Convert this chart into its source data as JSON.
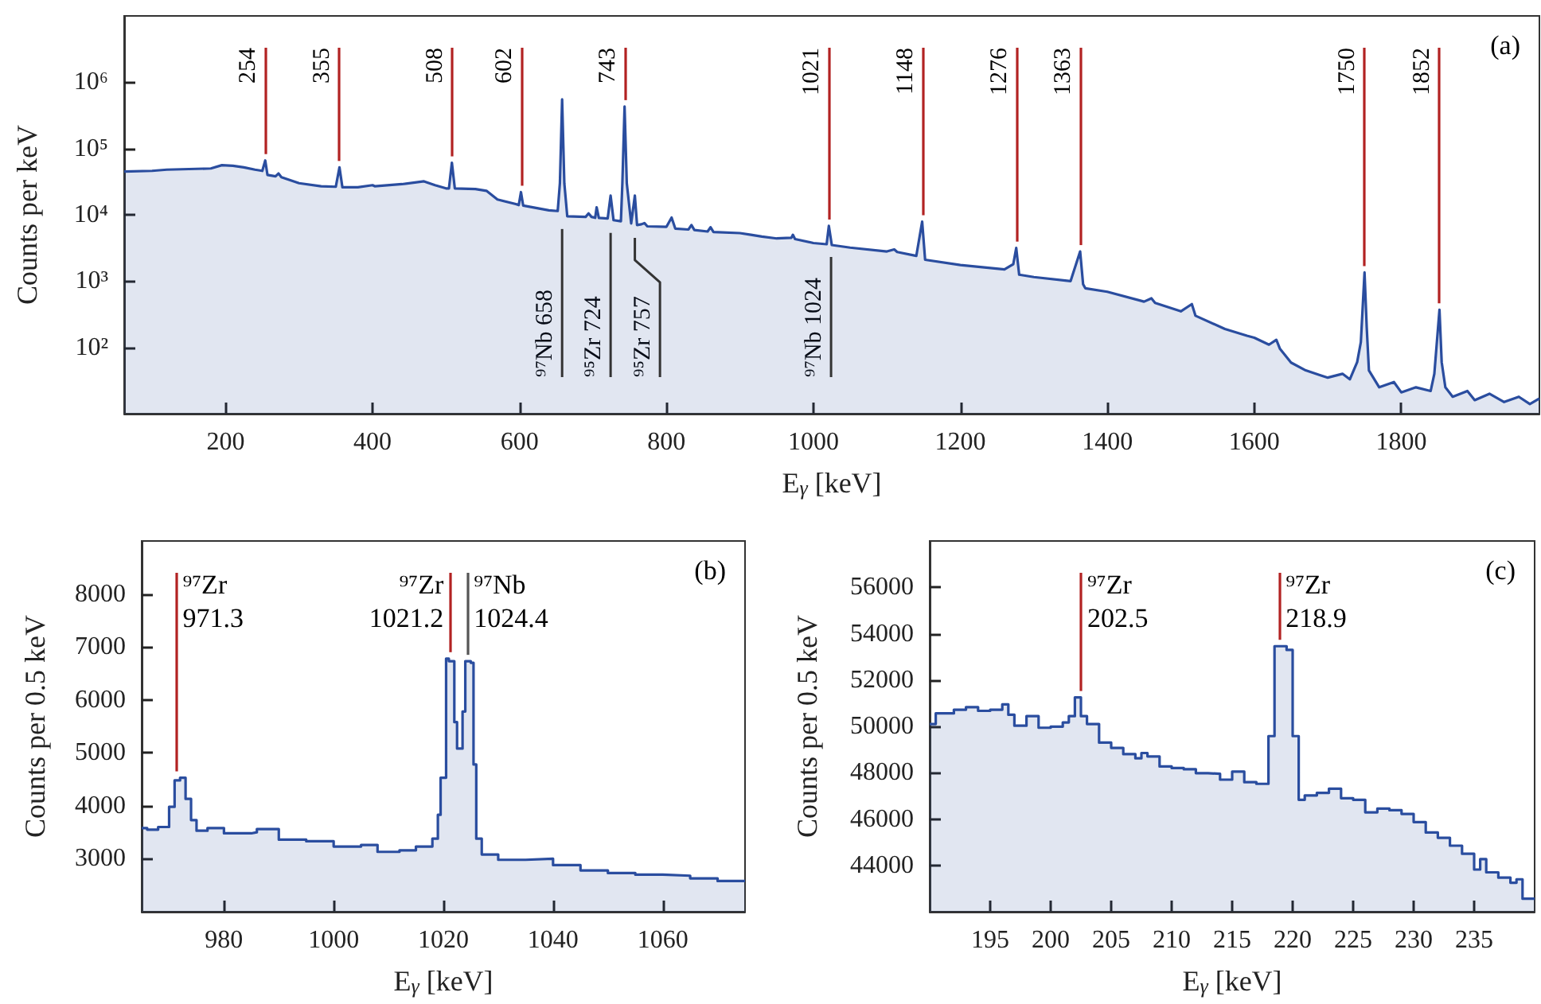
{
  "chart_data": [
    {
      "type": "area",
      "xlabel": "E$_{γ}$ [keV]",
      "ylabel": "Counts per keV",
      "log": "y",
      "xlim": [
        62,
        1988
      ],
      "xticks": [
        200,
        400,
        600,
        800,
        1000,
        1200,
        1400,
        1600,
        1800
      ],
      "ylim": [
        10,
        10000000
      ],
      "yticks": [
        {
          "value": 100,
          "label": "10²"
        },
        {
          "value": 1000,
          "label": "10³"
        },
        {
          "value": 10000,
          "label": "10⁴"
        },
        {
          "value": 100000,
          "label": "10⁵"
        },
        {
          "value": 1000000,
          "label": "10⁶"
        }
      ],
      "x": [
        62,
        100,
        120,
        150,
        180,
        195,
        210,
        225,
        240,
        250,
        254,
        257,
        268,
        272,
        276,
        300,
        330,
        350,
        355,
        359,
        380,
        400,
        403,
        440,
        470,
        485,
        500,
        504,
        508,
        512,
        540,
        555,
        570,
        595,
        599,
        602,
        605,
        640,
        652,
        655,
        658,
        661,
        665,
        690,
        694,
        698,
        703,
        705,
        708,
        720,
        724,
        728,
        738,
        740,
        743,
        746,
        752,
        757,
        760,
        766,
        770,
        774,
        800,
        807,
        812,
        830,
        834,
        838,
        856,
        860,
        864,
        900,
        915,
        930,
        950,
        970,
        972,
        975,
        1000,
        1018,
        1021,
        1025,
        1050,
        1100,
        1110,
        1114,
        1140,
        1148,
        1152,
        1200,
        1260,
        1272,
        1276,
        1280,
        1300,
        1350,
        1363,
        1367,
        1370,
        1400,
        1450,
        1460,
        1465,
        1500,
        1515,
        1520,
        1560,
        1590,
        1600,
        1620,
        1630,
        1635,
        1650,
        1670,
        1690,
        1700,
        1720,
        1730,
        1740,
        1745,
        1750,
        1753,
        1756,
        1770,
        1790,
        1800,
        1820,
        1840,
        1845,
        1852,
        1855,
        1860,
        1870,
        1890,
        1900,
        1920,
        1940,
        1960,
        1975,
        1988
      ],
      "series": [
        {
          "color": "#2a4d9f",
          "values": [
            45000,
            46000,
            48000,
            49000,
            50000,
            56000,
            55000,
            52000,
            48000,
            46000,
            66000,
            40000,
            38000,
            42000,
            37000,
            30000,
            27000,
            26500,
            52000,
            26000,
            26000,
            28000,
            27000,
            29000,
            32000,
            28000,
            25000,
            25000,
            61000,
            25000,
            24500,
            23000,
            17000,
            14500,
            14000,
            22000,
            13800,
            11700,
            11400,
            30000,
            550000,
            30000,
            9500,
            9300,
            10500,
            9300,
            9000,
            13000,
            9000,
            8800,
            19500,
            8300,
            8000,
            30000,
            430000,
            30000,
            7400,
            19500,
            7000,
            7200,
            7500,
            6700,
            6600,
            9100,
            6200,
            6000,
            7000,
            5900,
            5600,
            6500,
            5500,
            5300,
            5000,
            4700,
            4400,
            4500,
            5000,
            4300,
            3750,
            3600,
            6800,
            3500,
            3200,
            2800,
            3000,
            2750,
            2400,
            7900,
            2100,
            1750,
            1500,
            1800,
            3160,
            1250,
            1150,
            1000,
            2800,
            900,
            780,
            690,
            490,
            550,
            470,
            350,
            450,
            300,
            190,
            150,
            140,
            110,
            130,
            95,
            59,
            45,
            38,
            35,
            40,
            33,
            60,
            120,
            1350,
            200,
            45,
            25,
            30,
            21,
            25,
            22,
            40,
            370,
            60,
            25,
            18,
            22,
            16,
            20,
            15,
            18,
            14,
            17
          ]
        }
      ],
      "ref_lines": [
        {
          "axis": "x",
          "value": 254,
          "label": "254",
          "color": "#b22222"
        },
        {
          "axis": "x",
          "value": 355,
          "label": "355",
          "color": "#b22222"
        },
        {
          "axis": "x",
          "value": 508,
          "label": "508",
          "color": "#b22222"
        },
        {
          "axis": "x",
          "value": 602,
          "label": "602",
          "color": "#b22222"
        },
        {
          "axis": "x",
          "value": 743,
          "label": "743",
          "color": "#b22222"
        },
        {
          "axis": "x",
          "value": 1021,
          "label": "1021",
          "color": "#b22222"
        },
        {
          "axis": "x",
          "value": 1148,
          "label": "1148",
          "color": "#b22222"
        },
        {
          "axis": "x",
          "value": 1276,
          "label": "1276",
          "color": "#b22222"
        },
        {
          "axis": "x",
          "value": 1363,
          "label": "1363",
          "color": "#b22222"
        },
        {
          "axis": "x",
          "value": 1750,
          "label": "1750",
          "color": "#b22222"
        },
        {
          "axis": "x",
          "value": 1852,
          "label": "1852",
          "color": "#b22222"
        }
      ],
      "annotations": [
        {
          "text": "⁹⁷Nb 658",
          "x": 658,
          "y": 9500
        },
        {
          "text": "⁹⁵Zr 724",
          "x": 724,
          "y": 8300
        },
        {
          "text": "⁹⁵Zr 757",
          "x": 757,
          "y": 7000
        },
        {
          "text": "⁹⁷Nb 1024",
          "x": 1024,
          "y": 3600
        },
        "(a)"
      ]
    },
    {
      "type": "area",
      "xlabel": "E$_{γ}$ [keV]",
      "ylabel": "Counts per 0.5 keV",
      "xlim": [
        965,
        1075
      ],
      "xticks": [
        980,
        1000,
        1020,
        1040,
        1060
      ],
      "ylim": [
        2000,
        9000
      ],
      "yticks": [
        3000,
        4000,
        5000,
        6000,
        7000,
        8000
      ],
      "x": [
        965,
        966,
        966,
        968,
        968,
        970,
        970,
        971,
        971,
        972,
        972,
        973,
        973,
        974,
        974,
        975,
        975,
        977,
        977,
        980,
        980,
        985,
        985,
        986,
        986,
        990,
        990,
        995,
        995,
        1000,
        1000,
        1005,
        1005,
        1008,
        1008,
        1012,
        1012,
        1015,
        1015,
        1018,
        1018,
        1019,
        1019,
        1019.5,
        1019.5,
        1020.5,
        1020.5,
        1021,
        1021,
        1022,
        1022,
        1022.5,
        1022.5,
        1023,
        1023,
        1023.5,
        1023.5,
        1024,
        1024,
        1025,
        1025,
        1025.5,
        1025.5,
        1026,
        1026,
        1027,
        1027,
        1030,
        1030,
        1035,
        1035,
        1040,
        1040,
        1045,
        1045,
        1050,
        1050,
        1055,
        1055,
        1060,
        1060,
        1065,
        1065,
        1070,
        1070,
        1075
      ],
      "series": [
        {
          "color": "#2a4d9f",
          "values": [
            3580,
            3580,
            3550,
            3550,
            3600,
            3600,
            3980,
            3980,
            4480,
            4480,
            4530,
            4530,
            4130,
            4130,
            3730,
            3730,
            3530,
            3530,
            3580,
            3580,
            3480,
            3480,
            3500,
            3500,
            3560,
            3560,
            3360,
            3360,
            3330,
            3330,
            3230,
            3230,
            3260,
            3260,
            3130,
            3130,
            3160,
            3160,
            3230,
            3230,
            3380,
            3380,
            3830,
            3830,
            4530,
            4530,
            6780,
            6780,
            6730,
            6730,
            5580,
            5580,
            5080,
            5080,
            5080,
            5080,
            5780,
            5780,
            6730,
            6730,
            6700,
            6700,
            4780,
            4780,
            3380,
            3380,
            3080,
            3080,
            2980,
            2980,
            3000,
            3000,
            2880,
            2880,
            2780,
            2780,
            2730,
            2730,
            2700,
            2700,
            2680,
            2680,
            2630,
            2630,
            2580,
            2580
          ]
        }
      ],
      "ref_lines": [
        {
          "axis": "x",
          "value": 971.3,
          "label": "⁹⁷Zr\n971.3",
          "color": "#b22222"
        },
        {
          "axis": "x",
          "value": 1021.2,
          "label": "⁹⁷Zr\n1021.2",
          "color": "#b22222"
        },
        {
          "axis": "x",
          "value": 1024.4,
          "label": "⁹⁷Nb\n1024.4",
          "color": "#555555"
        }
      ],
      "annotations": [
        "(b)"
      ]
    },
    {
      "type": "area",
      "xlabel": "E$_{γ}$ [keV]",
      "ylabel": "Counts per 0.5 keV",
      "xlim": [
        190,
        240
      ],
      "xticks": [
        195,
        200,
        205,
        210,
        215,
        220,
        225,
        230,
        235
      ],
      "ylim": [
        42000,
        58000
      ],
      "yticks": [
        44000,
        46000,
        48000,
        50000,
        52000,
        54000,
        56000
      ],
      "x": [
        190,
        190.5,
        190.5,
        192,
        192,
        193,
        193,
        194,
        194,
        195,
        195,
        196,
        196,
        196.5,
        196.5,
        197,
        197,
        198,
        198,
        199,
        199,
        200,
        200,
        201,
        201,
        201.5,
        201.5,
        202,
        202,
        202.5,
        202.5,
        203,
        203,
        204,
        204,
        205,
        205,
        206,
        206,
        207,
        207,
        207.5,
        207.5,
        208,
        208,
        209,
        209,
        210,
        210,
        211,
        211,
        212,
        212,
        213,
        213,
        214,
        214,
        215,
        215,
        216,
        216,
        217,
        217,
        218,
        218,
        218.5,
        218.5,
        219.5,
        219.5,
        220,
        220,
        220.5,
        220.5,
        221,
        221,
        222,
        222,
        223,
        223,
        224,
        224,
        225,
        225,
        226,
        226,
        227,
        227,
        228,
        228,
        229,
        229,
        230,
        230,
        231,
        231,
        232,
        232,
        233,
        233,
        234,
        234,
        235,
        235,
        235.5,
        235.5,
        236,
        236,
        237,
        237,
        238,
        238,
        238.5,
        238.5,
        239,
        239,
        240
      ],
      "series": [
        {
          "color": "#2a4d9f",
          "values": [
            50100,
            50100,
            50560,
            50560,
            50720,
            50720,
            50830,
            50830,
            50670,
            50670,
            50720,
            50720,
            50950,
            50950,
            50500,
            50500,
            50030,
            50030,
            50440,
            50440,
            49940,
            49940,
            49990,
            49990,
            50170,
            50170,
            50440,
            50440,
            51250,
            51250,
            50440,
            50440,
            50100,
            50100,
            49300,
            49300,
            49070,
            49070,
            48800,
            48800,
            48620,
            48620,
            48850,
            48850,
            48700,
            48700,
            48270,
            48270,
            48200,
            48200,
            48150,
            48150,
            47980,
            47980,
            47950,
            47950,
            47700,
            47700,
            48050,
            48050,
            47590,
            47590,
            47520,
            47520,
            49580,
            49580,
            53460,
            53460,
            53300,
            53300,
            49580,
            49580,
            46830,
            46830,
            47020,
            47020,
            47130,
            47130,
            47310,
            47310,
            46900,
            46900,
            46830,
            46830,
            46290,
            46290,
            46450,
            46450,
            46380,
            46380,
            46220,
            46220,
            45870,
            45870,
            45420,
            45420,
            45190,
            45190,
            44850,
            44850,
            44500,
            44500,
            43820,
            43820,
            44270,
            44270,
            43700,
            43700,
            43470,
            43470,
            43250,
            43250,
            43400,
            43400,
            42560,
            42560
          ]
        }
      ],
      "ref_lines": [
        {
          "axis": "x",
          "value": 202.5,
          "label": "⁹⁷Zr\n202.5",
          "color": "#b22222"
        },
        {
          "axis": "x",
          "value": 218.9,
          "label": "⁹⁷Zr\n218.9",
          "color": "#b22222"
        }
      ],
      "annotations": [
        "(c)"
      ]
    }
  ]
}
